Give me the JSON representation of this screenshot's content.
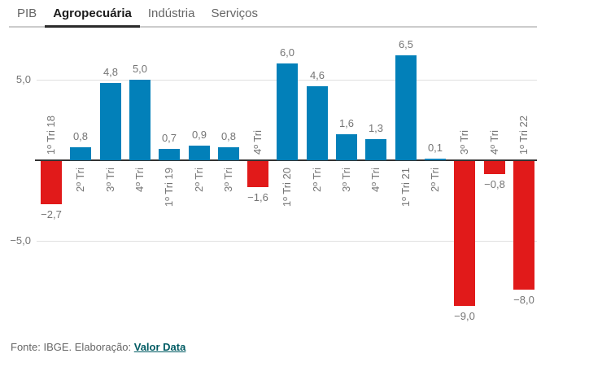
{
  "tabs": [
    {
      "label": "PIB",
      "active": false
    },
    {
      "label": "Agropecuária",
      "active": true
    },
    {
      "label": "Indústria",
      "active": false
    },
    {
      "label": "Serviços",
      "active": false
    }
  ],
  "chart_data": {
    "type": "bar",
    "title": "",
    "xlabel": "",
    "ylabel": "",
    "categories": [
      "1º Tri 18",
      "2º Tri",
      "3º Tri",
      "4º Tri",
      "1º Tri 19",
      "2º Tri",
      "3º Tri",
      "4º Tri",
      "1º Tri 20",
      "2º Tri",
      "3º Tri",
      "4º Tri",
      "1º Tri 21",
      "2º Tri",
      "3º Tri",
      "4º Tri",
      "1º Tri 22"
    ],
    "values": [
      -2.7,
      0.8,
      4.8,
      5.0,
      0.7,
      0.9,
      0.8,
      -1.6,
      6.0,
      4.6,
      1.6,
      1.3,
      6.5,
      0.1,
      -9.0,
      -0.8,
      -8.0
    ],
    "value_labels": [
      "−2,7",
      "0,8",
      "4,8",
      "5,0",
      "0,7",
      "0,9",
      "0,8",
      "−1,6",
      "6,0",
      "4,6",
      "1,6",
      "1,3",
      "6,5",
      "0,1",
      "−9,0",
      "−0,8",
      "−8,0"
    ],
    "yticks": [
      {
        "value": 5,
        "label": "5,0"
      },
      {
        "value": -5,
        "label": "−5,0"
      }
    ],
    "ylim": [
      -10,
      8
    ],
    "grid": "horizontal",
    "legend": "none",
    "colors": {
      "positive": "#0280b9",
      "negative": "#e11a1a"
    }
  },
  "footer": {
    "source_text": "Fonte: IBGE. Elaboração: ",
    "link_label": "Valor Data"
  },
  "colors": {
    "active_tab": "#1b1b1b",
    "inactive_tab": "#666666",
    "link": "#005b63",
    "axis": "#333333",
    "gridline": "#e0e0e0",
    "label_text": "#757575"
  }
}
